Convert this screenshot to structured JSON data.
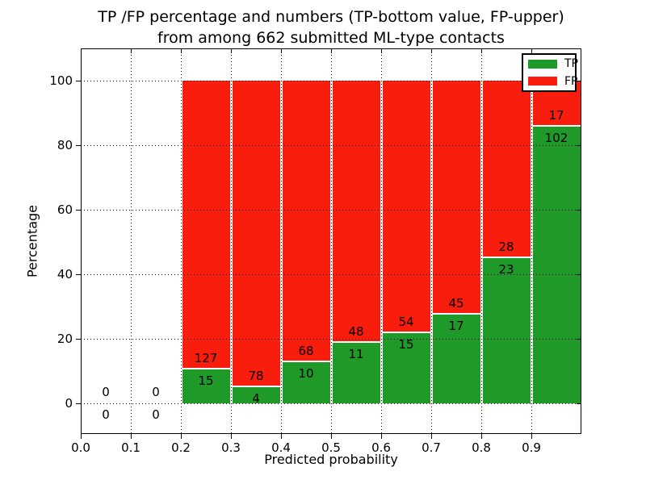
{
  "figure": {
    "background": "#ffffff"
  },
  "chart_data": {
    "type": "bar",
    "stacked": true,
    "percentage_normalized": true,
    "title": "TP /FP percentage and numbers (TP-bottom value, FP-upper) from among 662 submitted ML-type contacts",
    "title_line1": "TP /FP percentage and numbers (TP-bottom value, FP-upper)",
    "title_line2": "from among 662 submitted ML-type contacts",
    "xlabel": "Predicted probability",
    "ylabel": "Percentage",
    "xlim": [
      0.0,
      1.0
    ],
    "ylim": [
      -10,
      110
    ],
    "xticks": [
      "0.0",
      "0.1",
      "0.2",
      "0.3",
      "0.4",
      "0.5",
      "0.6",
      "0.7",
      "0.8",
      "0.9"
    ],
    "yticks": [
      0,
      20,
      40,
      60,
      80,
      100
    ],
    "grid": true,
    "grid_style": "dotted",
    "total_contacts": 662,
    "legend": {
      "position": "upper right",
      "entries": [
        {
          "label": "TP",
          "color": "#1F9928"
        },
        {
          "label": "FP",
          "color": "#F91D0D"
        }
      ]
    },
    "bins": [
      {
        "range": [
          0.0,
          0.1
        ],
        "tp": 0,
        "fp": 0
      },
      {
        "range": [
          0.1,
          0.2
        ],
        "tp": 0,
        "fp": 0
      },
      {
        "range": [
          0.2,
          0.3
        ],
        "tp": 15,
        "fp": 127
      },
      {
        "range": [
          0.3,
          0.4
        ],
        "tp": 4,
        "fp": 78
      },
      {
        "range": [
          0.4,
          0.5
        ],
        "tp": 10,
        "fp": 68
      },
      {
        "range": [
          0.5,
          0.6
        ],
        "tp": 11,
        "fp": 48
      },
      {
        "range": [
          0.6,
          0.7
        ],
        "tp": 15,
        "fp": 54
      },
      {
        "range": [
          0.7,
          0.8
        ],
        "tp": 17,
        "fp": 45
      },
      {
        "range": [
          0.8,
          0.9
        ],
        "tp": 23,
        "fp": 28
      },
      {
        "range": [
          0.9,
          1.0
        ],
        "tp": 102,
        "fp": 17
      }
    ],
    "colors": {
      "tp": "#1F9928",
      "fp": "#F91D0D",
      "grid": "#000000",
      "text": "#000000"
    }
  }
}
